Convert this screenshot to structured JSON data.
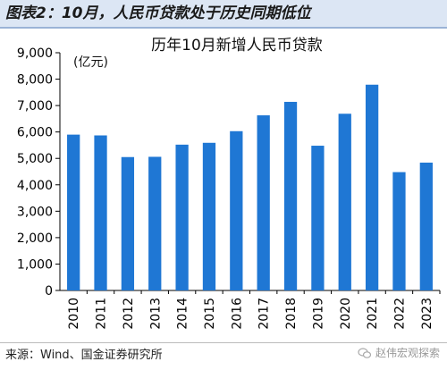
{
  "header": {
    "figure_title": "图表2：10月，人民币贷款处于历史同期低位"
  },
  "footer": {
    "source": "来源：Wind、国金证券研究所",
    "watermark": "赵伟宏观探索"
  },
  "chart_data": {
    "type": "bar",
    "title": "历年10月新增人民币贷款",
    "unit_label": "(亿元)",
    "xlabel": "",
    "ylabel": "",
    "categories": [
      "2010",
      "2011",
      "2012",
      "2013",
      "2014",
      "2015",
      "2016",
      "2017",
      "2018",
      "2019",
      "2020",
      "2021",
      "2022",
      "2023"
    ],
    "values": [
      5900,
      5870,
      5050,
      5060,
      5520,
      5590,
      6030,
      6630,
      7140,
      5480,
      6690,
      7790,
      4480,
      4840
    ],
    "ylim": [
      0,
      9000
    ],
    "yticks": [
      0,
      1000,
      2000,
      3000,
      4000,
      5000,
      6000,
      7000,
      8000,
      9000
    ],
    "ytick_labels": [
      "0",
      "1,000",
      "2,000",
      "3,000",
      "4,000",
      "5,000",
      "6,000",
      "7,000",
      "8,000",
      "9,000"
    ],
    "grid": false,
    "legend": "none",
    "bar_color": "#1f77d4"
  }
}
